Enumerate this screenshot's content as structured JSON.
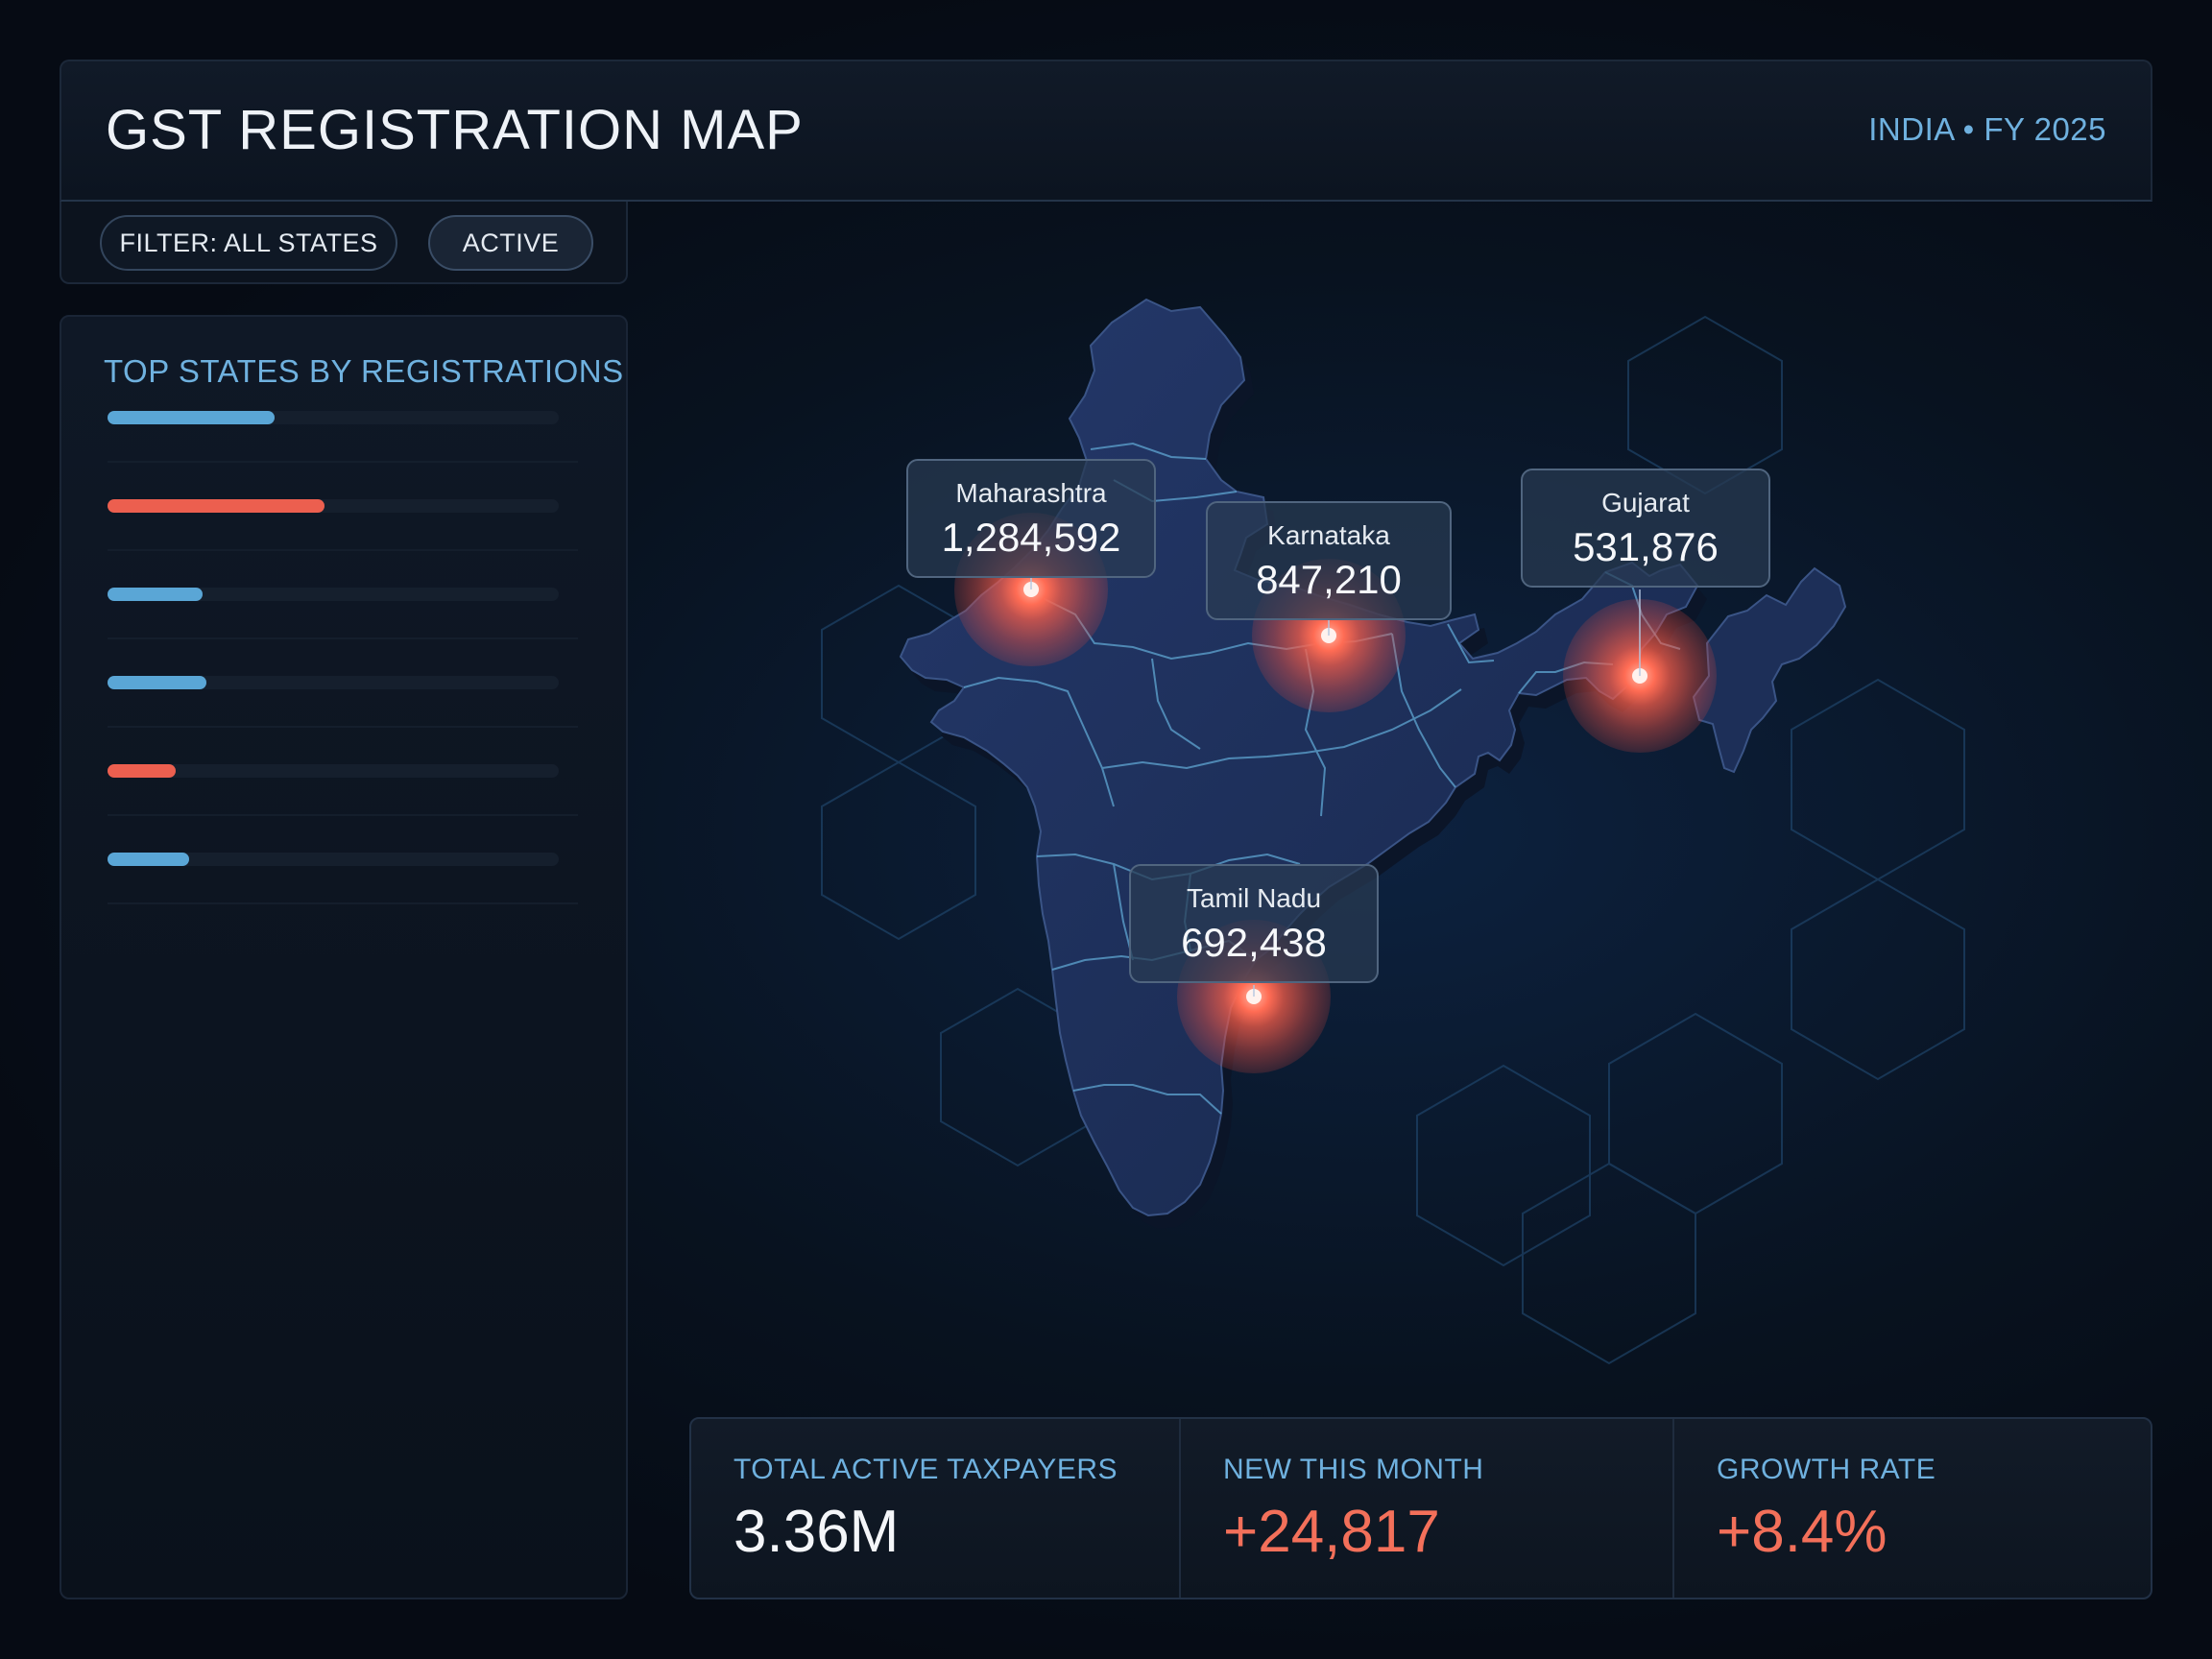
{
  "header": {
    "title": "GST REGISTRATION MAP",
    "subtitle": "INDIA • FY 2025"
  },
  "filters": {
    "filter_label": "FILTER: ALL STATES",
    "active_label": "ACTIVE"
  },
  "left_panel": {
    "title": "TOP STATES BY REGISTRATIONS",
    "bars": [
      {
        "fill": 0.37,
        "color": "#5aa6d6"
      },
      {
        "fill": 0.48,
        "color": "#ec5f4f"
      },
      {
        "fill": 0.21,
        "color": "#5aa6d6"
      },
      {
        "fill": 0.22,
        "color": "#5aa6d6"
      },
      {
        "fill": 0.15,
        "color": "#ec5f4f"
      },
      {
        "fill": 0.18,
        "color": "#5aa6d6"
      }
    ]
  },
  "callouts": [
    {
      "name": "Maharashtra",
      "value": "1,284,592"
    },
    {
      "name": "Karnataka",
      "value": "847,210"
    },
    {
      "name": "Gujarat",
      "value": "531,876"
    },
    {
      "name": "Tamil Nadu",
      "value": "692,438"
    }
  ],
  "stats": {
    "total_label": "TOTAL ACTIVE TAXPAYERS",
    "total_value": "3.36M",
    "new_label": "NEW THIS MONTH",
    "new_value": "+24,817",
    "growth_label": "GROWTH RATE",
    "growth_value": "+8.4%"
  },
  "colors": {
    "accent_blue": "#6fb1df",
    "accent_coral": "#f3705a",
    "map_fill": "#1c2f56"
  }
}
